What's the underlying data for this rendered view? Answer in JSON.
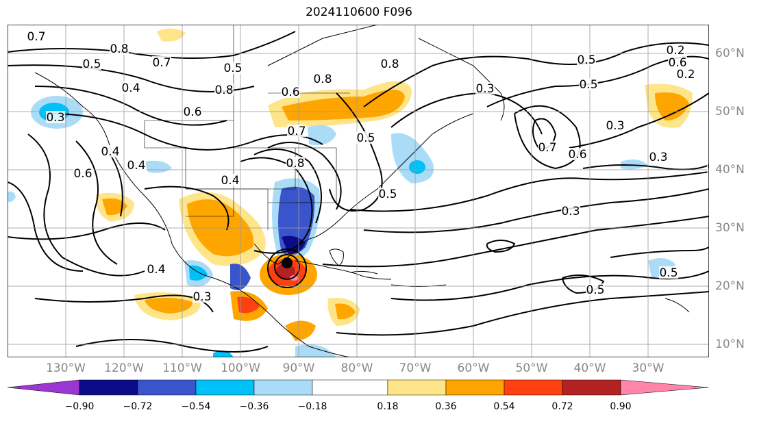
{
  "title": "2024110600 F096",
  "lon_labels": [
    "130°W",
    "120°W",
    "110°W",
    "100°W",
    "90°W",
    "80°W",
    "70°W",
    "60°W",
    "50°W",
    "40°W",
    "30°W"
  ],
  "lat_labels": [
    "60°N",
    "50°N",
    "40°N",
    "30°N",
    "20°N",
    "10°N"
  ],
  "contour_labels": [
    "0.7",
    "0.8",
    "0.5",
    "0.7",
    "0.5",
    "0.4",
    "0.8",
    "0.6",
    "0.8",
    "0.8",
    "0.3",
    "0.5",
    "0.5",
    "0.6",
    "0.3",
    "0.6",
    "0.7",
    "0.5",
    "0.3",
    "0.7",
    "0.6",
    "0.4",
    "0.3",
    "0.5",
    "0.4",
    "0.5",
    "0.3",
    "0.4",
    "0.8",
    "0.3",
    "0.5",
    "0.5",
    "0.4",
    "0.6",
    "0.2",
    "0.2"
  ],
  "colorbar": {
    "tick_labels": [
      "−0.90",
      "−0.72",
      "−0.54",
      "−0.36",
      "−0.18",
      "0.18",
      "0.36",
      "0.54",
      "0.72",
      "0.90"
    ],
    "colors": [
      "#9b36d2",
      "#0c0c8a",
      "#3a55cc",
      "#00c0f8",
      "#aadcf8",
      "#ffffff",
      "#ffe58a",
      "#ffa500",
      "#ff4010",
      "#b22222",
      "#ff85aa"
    ]
  }
}
